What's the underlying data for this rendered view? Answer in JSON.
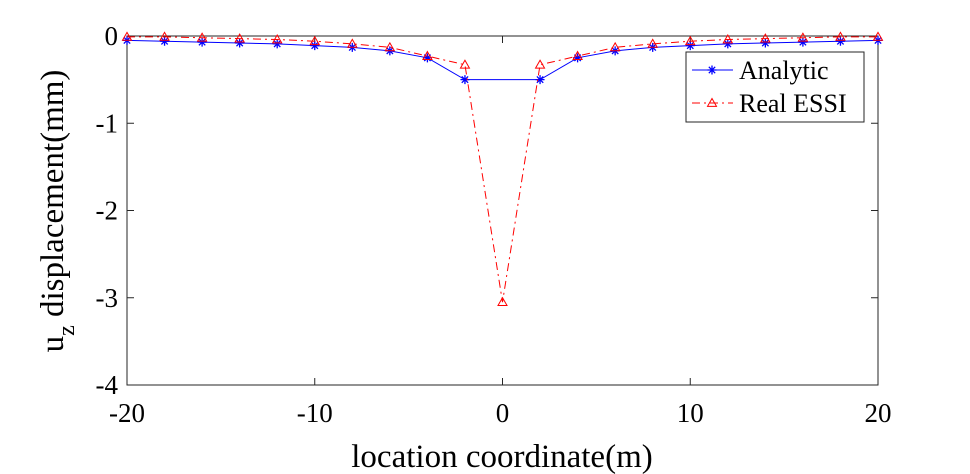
{
  "chart_data": {
    "type": "line",
    "title": "",
    "xlabel": "location coordinate(m)",
    "ylabel_main": "u",
    "ylabel_sub": "z",
    "ylabel_rest": " displacement(mm)",
    "xlim": [
      -20,
      20
    ],
    "ylim": [
      -4,
      0
    ],
    "xticks": [
      -20,
      -10,
      0,
      10,
      20
    ],
    "yticks": [
      0,
      -1,
      -2,
      -3,
      -4
    ],
    "grid": false,
    "legend_position": "top-right",
    "series": [
      {
        "name": "Analytic",
        "color": "#0000ff",
        "line_style": "solid",
        "marker": "asterisk",
        "x": [
          -20,
          -18,
          -16,
          -14,
          -12,
          -10,
          -8,
          -6,
          -4,
          -2,
          2,
          4,
          6,
          8,
          10,
          12,
          14,
          16,
          18,
          20
        ],
        "y": [
          -0.05,
          -0.06,
          -0.07,
          -0.08,
          -0.09,
          -0.11,
          -0.13,
          -0.17,
          -0.25,
          -0.5,
          -0.5,
          -0.25,
          -0.17,
          -0.13,
          -0.11,
          -0.09,
          -0.08,
          -0.07,
          -0.06,
          -0.05
        ]
      },
      {
        "name": "Real ESSI",
        "color": "#ff0000",
        "line_style": "dashdot",
        "marker": "triangle",
        "x": [
          -20,
          -18,
          -16,
          -14,
          -12,
          -10,
          -8,
          -6,
          -4,
          -2,
          0,
          2,
          4,
          6,
          8,
          10,
          12,
          14,
          16,
          18,
          20
        ],
        "y": [
          -0.01,
          -0.01,
          -0.02,
          -0.03,
          -0.04,
          -0.06,
          -0.09,
          -0.13,
          -0.23,
          -0.33,
          -3.05,
          -0.33,
          -0.23,
          -0.13,
          -0.09,
          -0.06,
          -0.04,
          -0.03,
          -0.02,
          -0.01,
          -0.01
        ]
      }
    ]
  }
}
